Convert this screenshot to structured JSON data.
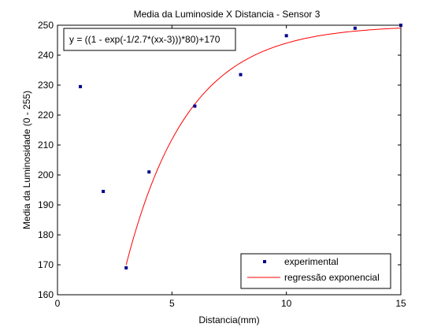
{
  "chart_data": {
    "type": "scatter",
    "title": "Media da Luminoside X Distancia - Sensor 3",
    "xlabel": "Distancia(mm)",
    "ylabel": "Media da Luminosidade (0 - 255)",
    "xlim": [
      0,
      15
    ],
    "ylim": [
      160,
      250
    ],
    "xticks": [
      0,
      5,
      10,
      15
    ],
    "yticks": [
      160,
      170,
      180,
      190,
      200,
      210,
      220,
      230,
      240,
      250
    ],
    "grid": false,
    "legend_position": "bottom-right",
    "annotation": "y = ((1 - exp(-1/2.7*(xx-3)))*80)+170",
    "series": [
      {
        "name": "experimental",
        "type": "scatter",
        "color": "#00008b",
        "x": [
          1,
          2,
          3,
          4,
          6,
          8,
          10,
          13,
          15
        ],
        "y": [
          229.5,
          194.5,
          169,
          201,
          223,
          233.5,
          246.5,
          249,
          250
        ]
      },
      {
        "name": "regressão exponencial",
        "type": "line",
        "color": "#ff0000",
        "function": {
          "a": 80,
          "b": 2.7,
          "x0": 3,
          "c": 170,
          "xmin": 3,
          "xmax": 15
        }
      }
    ]
  }
}
